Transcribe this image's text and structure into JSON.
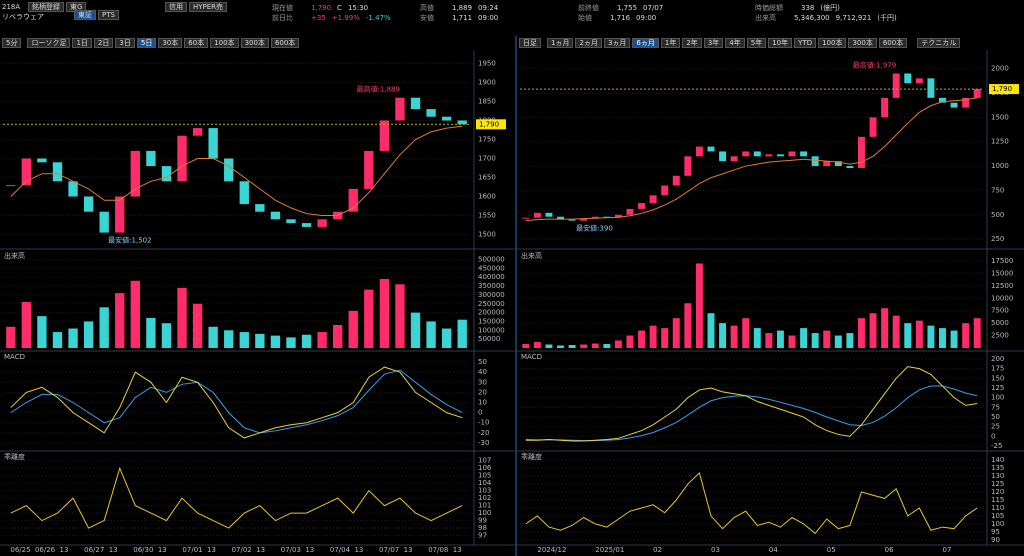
{
  "header": {
    "code": "218A",
    "buttons": [
      "銘柄登録",
      "東G"
    ],
    "market_tabs": [
      "東証",
      "PTS"
    ],
    "credit_buttons": [
      "信用",
      "HYPER売"
    ],
    "name": "リベラウェア",
    "quotes": [
      {
        "label": "現在値",
        "parts": [
          "1,790",
          "C",
          "15:30"
        ]
      },
      {
        "label": "高値",
        "parts": [
          "1,889",
          "09:24"
        ]
      },
      {
        "label": "前終値",
        "parts": [
          "1,755",
          "07/07"
        ]
      },
      {
        "label": "時価総額",
        "parts": [
          "338",
          "(億円)"
        ]
      },
      {
        "label": "前日比",
        "parts": [
          "+35",
          "+1.99%",
          "-1.47%"
        ]
      },
      {
        "label": "安値",
        "parts": [
          "1,711",
          "09:00"
        ]
      },
      {
        "label": "始値",
        "parts": [
          "1,716",
          "09:00"
        ]
      },
      {
        "label": "出来高",
        "parts": [
          "5,346,300",
          "9,712,921",
          "(千円)"
        ]
      }
    ]
  },
  "left": {
    "toolbar": {
      "interval": "5分",
      "style": "ローソク足",
      "ranges": [
        "1日",
        "2日",
        "3日",
        "5日",
        "30本",
        "60本",
        "100本",
        "300本",
        "600本"
      ],
      "active": "5日"
    },
    "price": {
      "ylim": [
        1475,
        1975
      ],
      "yticks": [
        1500,
        1550,
        1600,
        1650,
        1700,
        1750,
        1800,
        1850,
        1900,
        1950
      ],
      "closes": [
        1630,
        1700,
        1690,
        1640,
        1600,
        1560,
        1505,
        1600,
        1720,
        1680,
        1640,
        1760,
        1780,
        1700,
        1640,
        1580,
        1560,
        1540,
        1530,
        1520,
        1540,
        1560,
        1620,
        1720,
        1800,
        1860,
        1830,
        1810,
        1800,
        1790
      ],
      "ma": [
        1600,
        1640,
        1660,
        1660,
        1640,
        1620,
        1590,
        1590,
        1620,
        1640,
        1650,
        1680,
        1700,
        1700,
        1680,
        1650,
        1620,
        1590,
        1570,
        1555,
        1550,
        1550,
        1570,
        1610,
        1660,
        1710,
        1750,
        1770,
        1780,
        1785
      ],
      "current_label": "1,790",
      "high_label": "最高値:1,889",
      "low_label": "最安値:1,502"
    },
    "volume": {
      "title": "出来高",
      "ylim": [
        0,
        520000
      ],
      "yticks": [
        {
          "value": 50000,
          "label": "50000"
        },
        100000,
        150000,
        200000,
        250000,
        300000,
        350000,
        400000,
        450000,
        500000
      ],
      "values": [
        120000,
        260000,
        180000,
        90000,
        110000,
        150000,
        230000,
        310000,
        380000,
        170000,
        140000,
        340000,
        250000,
        120000,
        100000,
        90000,
        80000,
        70000,
        60000,
        75000,
        90000,
        130000,
        210000,
        330000,
        390000,
        360000,
        200000,
        150000,
        110000,
        160000
      ]
    },
    "macd": {
      "title": "MACD",
      "ylim": [
        -35,
        55
      ],
      "yticks": [
        50,
        40,
        30,
        20,
        10,
        0,
        -10,
        -20,
        -30
      ],
      "macd": [
        5,
        20,
        25,
        15,
        0,
        -10,
        -20,
        5,
        40,
        30,
        10,
        35,
        30,
        10,
        -15,
        -25,
        -20,
        -15,
        -12,
        -10,
        -5,
        0,
        10,
        35,
        45,
        40,
        20,
        10,
        0,
        -5
      ],
      "signal": [
        0,
        10,
        18,
        18,
        10,
        0,
        -10,
        -5,
        15,
        25,
        20,
        28,
        30,
        20,
        0,
        -15,
        -20,
        -18,
        -15,
        -12,
        -8,
        -3,
        5,
        22,
        38,
        42,
        30,
        18,
        8,
        0
      ]
    },
    "deviation": {
      "title": "乖離度",
      "ylim": [
        96,
        107.5
      ],
      "yticks": [
        97,
        98,
        99,
        100,
        101,
        102,
        103,
        104,
        105,
        106,
        107
      ],
      "values": [
        100,
        101,
        99,
        100,
        102,
        98,
        99,
        106,
        101,
        100,
        99,
        102,
        100,
        99,
        98,
        100,
        101,
        99,
        100,
        100,
        101,
        102,
        100,
        103,
        101,
        102,
        100,
        99,
        100,
        101
      ]
    },
    "xlabels": [
      "06/25",
      "06/26",
      "13",
      "06/27",
      "13",
      "06/30",
      "13",
      "07/01",
      "13",
      "07/02",
      "13",
      "07/03",
      "13",
      "07/04",
      "13",
      "07/07",
      "13",
      "07/08",
      "13"
    ]
  },
  "right": {
    "toolbar": {
      "interval": "日足",
      "ranges": [
        "1ヵ月",
        "2ヵ月",
        "3ヵ月",
        "6ヵ月",
        "1年",
        "2年",
        "3年",
        "4年",
        "5年",
        "10年",
        "YTD",
        "100本",
        "300本",
        "600本"
      ],
      "active": "6ヵ月",
      "technical": "テクニカル"
    },
    "price": {
      "ylim": [
        200,
        2150
      ],
      "yticks": [
        250,
        500,
        750,
        1000,
        1250,
        1500,
        1750,
        2000
      ],
      "closes": [
        470,
        520,
        480,
        450,
        440,
        460,
        480,
        470,
        500,
        560,
        620,
        700,
        800,
        900,
        1100,
        1200,
        1150,
        1050,
        1100,
        1150,
        1100,
        1120,
        1100,
        1150,
        1100,
        1000,
        1050,
        1000,
        980,
        1300,
        1500,
        1700,
        1950,
        1850,
        1900,
        1700,
        1650,
        1600,
        1700,
        1790
      ],
      "ma": [
        440,
        450,
        455,
        455,
        455,
        460,
        465,
        470,
        475,
        490,
        515,
        550,
        600,
        660,
        740,
        820,
        880,
        920,
        960,
        1000,
        1020,
        1040,
        1050,
        1060,
        1070,
        1060,
        1050,
        1040,
        1020,
        1040,
        1100,
        1200,
        1320,
        1440,
        1550,
        1620,
        1660,
        1670,
        1680,
        1700
      ],
      "current_label": "1,790",
      "high_label": "最高値:1,979",
      "low_label": "最安値:390"
    },
    "volume": {
      "title": "出来高",
      "ylim": [
        0,
        18500
      ],
      "yticks": [
        2500,
        5000,
        7500,
        10000,
        12500,
        15000,
        17500
      ],
      "values": [
        800,
        1200,
        700,
        500,
        600,
        700,
        900,
        800,
        1500,
        2500,
        3500,
        4500,
        4000,
        6000,
        9000,
        17000,
        7000,
        5000,
        4500,
        6000,
        4000,
        3000,
        3500,
        2500,
        4000,
        3000,
        3500,
        2500,
        3000,
        6000,
        7000,
        8000,
        6500,
        5000,
        5500,
        4500,
        4000,
        3500,
        5000,
        6000
      ]
    },
    "macd": {
      "title": "MACD",
      "ylim": [
        -30,
        205
      ],
      "yticks": [
        200,
        175,
        150,
        125,
        100,
        75,
        50,
        25,
        0,
        -25
      ],
      "macd": [
        -10,
        -10,
        -8,
        -10,
        -12,
        -12,
        -10,
        -8,
        -5,
        5,
        15,
        30,
        50,
        70,
        100,
        120,
        125,
        115,
        110,
        105,
        90,
        80,
        70,
        60,
        50,
        30,
        15,
        5,
        0,
        30,
        70,
        110,
        150,
        180,
        175,
        160,
        130,
        100,
        80,
        85
      ],
      "signal": [
        -8,
        -9,
        -9,
        -9,
        -10,
        -11,
        -11,
        -10,
        -8,
        -4,
        2,
        10,
        22,
        36,
        55,
        75,
        92,
        100,
        104,
        105,
        102,
        96,
        88,
        80,
        72,
        62,
        50,
        40,
        30,
        28,
        36,
        52,
        74,
        100,
        120,
        130,
        130,
        122,
        112,
        105
      ]
    },
    "deviation": {
      "title": "乖離度",
      "ylim": [
        88,
        142
      ],
      "yticks": [
        90,
        95,
        100,
        105,
        110,
        115,
        120,
        125,
        130,
        135,
        140
      ],
      "values": [
        100,
        105,
        98,
        96,
        99,
        104,
        100,
        98,
        103,
        108,
        110,
        112,
        107,
        115,
        125,
        132,
        105,
        97,
        104,
        108,
        99,
        101,
        98,
        104,
        100,
        94,
        103,
        97,
        99,
        120,
        118,
        116,
        122,
        105,
        110,
        96,
        98,
        97,
        105,
        110
      ]
    },
    "xlabels": [
      "2024/12",
      "2025/01",
      "02",
      "03",
      "04",
      "05",
      "06",
      "07"
    ]
  }
}
